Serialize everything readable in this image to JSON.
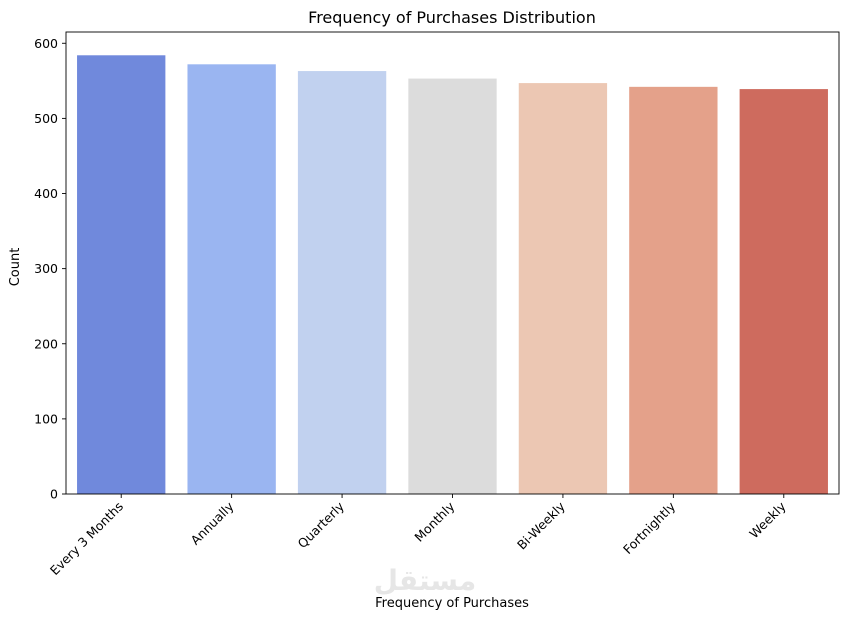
{
  "chart_data": {
    "type": "bar",
    "title": "Frequency of Purchases Distribution",
    "xlabel": "Frequency of Purchases",
    "ylabel": "Count",
    "categories": [
      "Every 3 Months",
      "Annually",
      "Quarterly",
      "Monthly",
      "Bi-Weekly",
      "Fortnightly",
      "Weekly"
    ],
    "values": [
      584,
      572,
      563,
      553,
      547,
      542,
      539
    ],
    "colors": [
      "#7089dc",
      "#9ab5f1",
      "#c1d1ef",
      "#dcdcdc",
      "#ecc7b3",
      "#e4a18a",
      "#ce6b5e"
    ],
    "ylim": [
      0,
      615
    ],
    "yticks": [
      0,
      100,
      200,
      300,
      400,
      500,
      600
    ],
    "grid": false,
    "legend": "none",
    "watermark": "مستقل"
  }
}
